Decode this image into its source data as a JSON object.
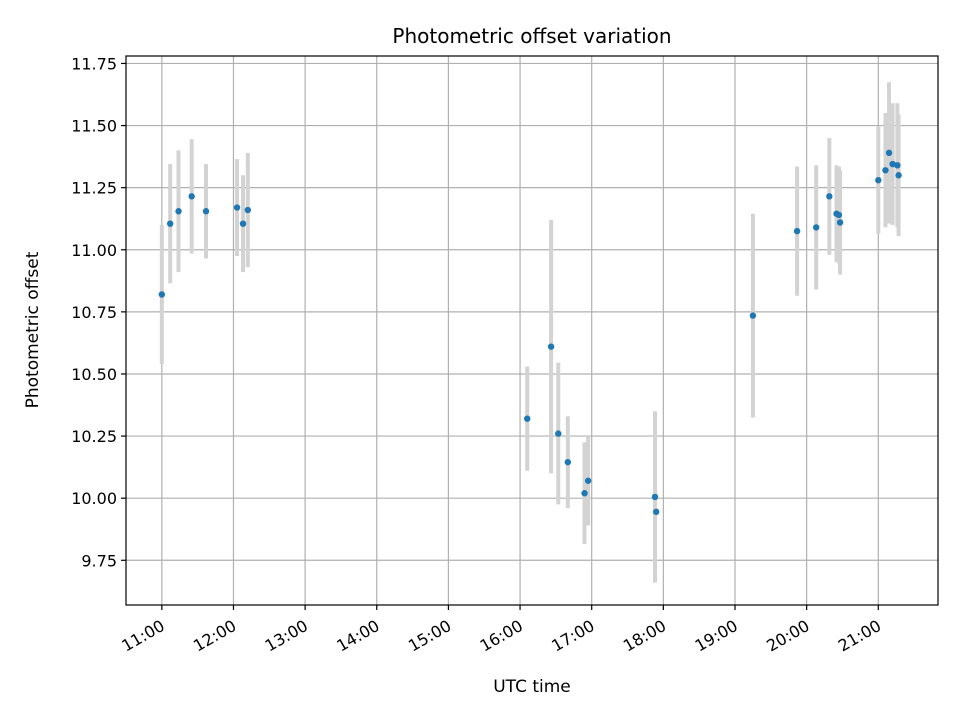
{
  "chart_data": {
    "type": "scatter",
    "title": "Photometric offset variation",
    "xlabel": "UTC time",
    "ylabel": "Photometric offset",
    "grid": true,
    "xlim": [
      "10:30",
      "21:50"
    ],
    "ylim": [
      9.57,
      11.78
    ],
    "x_ticks": [
      "11:00",
      "12:00",
      "13:00",
      "14:00",
      "15:00",
      "16:00",
      "17:00",
      "18:00",
      "19:00",
      "20:00",
      "21:00"
    ],
    "y_ticks": [
      "9.75",
      "10.00",
      "10.25",
      "10.50",
      "10.75",
      "11.00",
      "11.25",
      "11.50",
      "11.75"
    ],
    "points": [
      {
        "t": "11:00",
        "y": 10.82,
        "err": 0.28
      },
      {
        "t": "11:07",
        "y": 11.105,
        "err": 0.24
      },
      {
        "t": "11:14",
        "y": 11.155,
        "err": 0.245
      },
      {
        "t": "11:25",
        "y": 11.215,
        "err": 0.23
      },
      {
        "t": "11:37",
        "y": 11.155,
        "err": 0.19
      },
      {
        "t": "12:03",
        "y": 11.17,
        "err": 0.195
      },
      {
        "t": "12:08",
        "y": 11.105,
        "err": 0.195
      },
      {
        "t": "12:12",
        "y": 11.16,
        "err": 0.23
      },
      {
        "t": "16:06",
        "y": 10.32,
        "err": 0.21
      },
      {
        "t": "16:26",
        "y": 10.61,
        "err": 0.51
      },
      {
        "t": "16:32",
        "y": 10.26,
        "err": 0.285
      },
      {
        "t": "16:40",
        "y": 10.145,
        "err": 0.185
      },
      {
        "t": "16:54",
        "y": 10.02,
        "err": 0.205
      },
      {
        "t": "16:57",
        "y": 10.07,
        "err": 0.18
      },
      {
        "t": "17:53",
        "y": 10.005,
        "err": 0.345
      },
      {
        "t": "17:54",
        "y": 9.945,
        "err": 0.0
      },
      {
        "t": "19:15",
        "y": 10.735,
        "err": 0.41
      },
      {
        "t": "19:52",
        "y": 11.075,
        "err": 0.26
      },
      {
        "t": "20:08",
        "y": 11.09,
        "err": 0.25
      },
      {
        "t": "20:19",
        "y": 11.215,
        "err": 0.235
      },
      {
        "t": "20:25",
        "y": 11.145,
        "err": 0.195
      },
      {
        "t": "20:27",
        "y": 11.14,
        "err": 0.195
      },
      {
        "t": "20:28",
        "y": 11.11,
        "err": 0.21
      },
      {
        "t": "21:00",
        "y": 11.28,
        "err": 0.215
      },
      {
        "t": "21:06",
        "y": 11.32,
        "err": 0.23
      },
      {
        "t": "21:09",
        "y": 11.39,
        "err": 0.285
      },
      {
        "t": "21:12",
        "y": 11.345,
        "err": 0.245
      },
      {
        "t": "21:16",
        "y": 11.34,
        "err": 0.25
      },
      {
        "t": "21:17",
        "y": 11.3,
        "err": 0.245
      }
    ],
    "colors": {
      "marker": "#1f77b4",
      "errorbar": "#d3d3d3",
      "grid": "#b0b0b0"
    }
  }
}
